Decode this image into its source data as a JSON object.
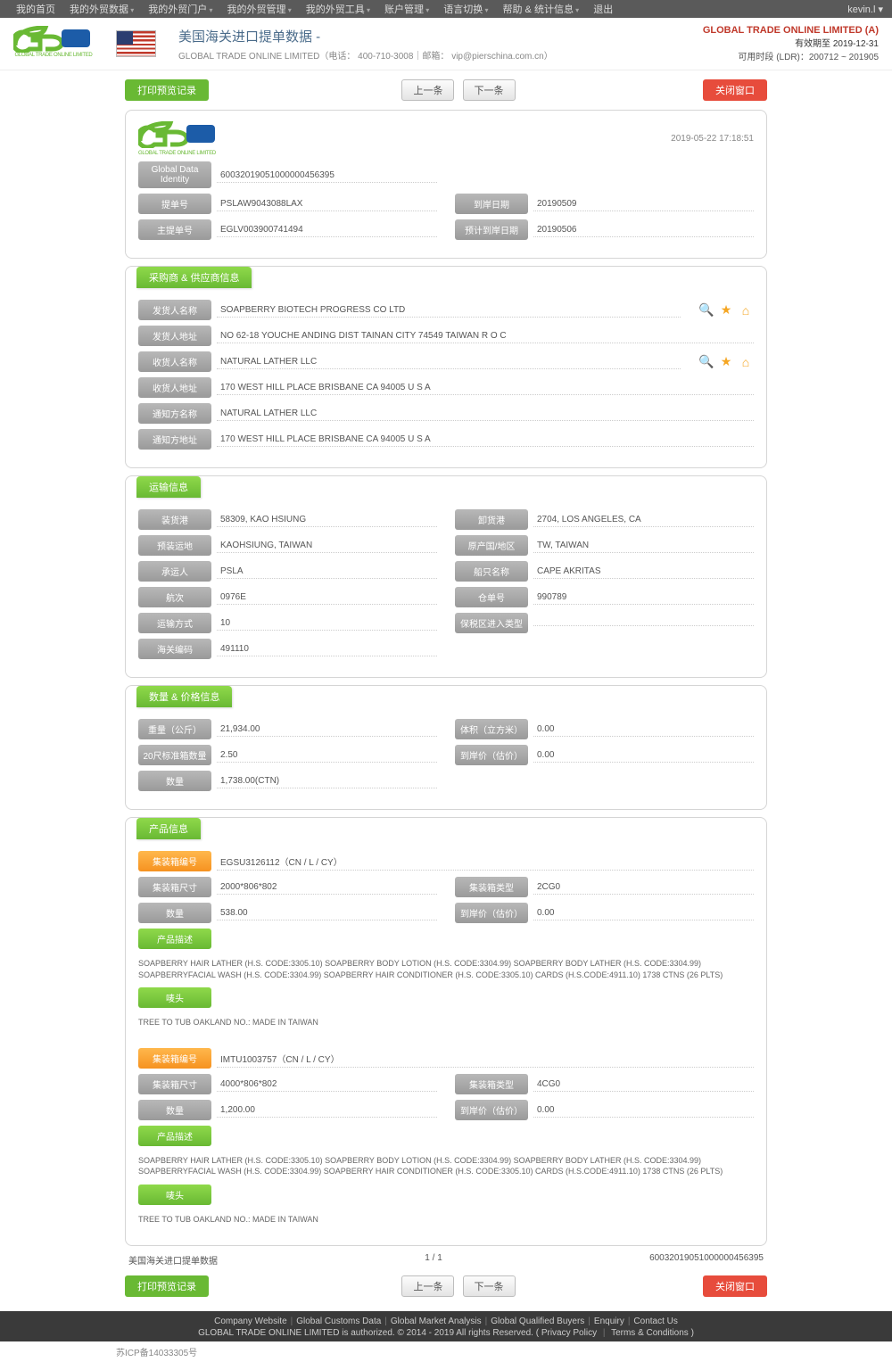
{
  "topnav": {
    "items": [
      "我的首页",
      "我的外贸数据",
      "我的外贸门户",
      "我的外贸管理",
      "我的外贸工具",
      "账户管理",
      "语言切换",
      "帮助 & 统计信息",
      "退出"
    ],
    "user": "kevin.l ▾"
  },
  "header": {
    "company_long": "GLOBAL TRADE ONLINE LIMITED",
    "title": "美国海关进口提单数据  -",
    "subtitle": "GLOBAL TRADE ONLINE LIMITED（电话：  400-710-3008｜邮箱：  vip@pierschina.com.cn）",
    "right_company": "GLOBAL TRADE ONLINE LIMITED (A)",
    "expire": "有效期至 2019-12-31",
    "period": "可用时段 (LDR)：200712 ~ 201905"
  },
  "actions": {
    "print": "打印预览记录",
    "prev": "上一条",
    "next": "下一条",
    "close": "关闭窗口"
  },
  "doc": {
    "timestamp": "2019-05-22 17:18:51",
    "gdi_lbl": "Global Data Identity",
    "gdi": "60032019051000000456395",
    "bill_no_lbl": "提单号",
    "bill_no": "PSLAW9043088LAX",
    "arrival_lbl": "到岸日期",
    "arrival": "20190509",
    "master_lbl": "主提单号",
    "master": "EGLV003900741494",
    "est_lbl": "预计到岸日期",
    "est": "20190506"
  },
  "parties": {
    "section": "采购商 & 供应商信息",
    "shipper_name_lbl": "发货人名称",
    "shipper_name": "SOAPBERRY BIOTECH PROGRESS CO LTD",
    "shipper_addr_lbl": "发货人地址",
    "shipper_addr": "NO 62-18 YOUCHE ANDING DIST TAINAN CITY 74549 TAIWAN R O C",
    "consignee_name_lbl": "收货人名称",
    "consignee_name": "NATURAL LATHER LLC",
    "consignee_addr_lbl": "收货人地址",
    "consignee_addr": "170 WEST HILL PLACE BRISBANE CA 94005 U S A",
    "notify_name_lbl": "通知方名称",
    "notify_name": "NATURAL LATHER LLC",
    "notify_addr_lbl": "通知方地址",
    "notify_addr": "170 WEST HILL PLACE BRISBANE CA 94005 U S A"
  },
  "transport": {
    "section": "运输信息",
    "load_port_lbl": "装货港",
    "load_port": "58309, KAO HSIUNG",
    "unload_port_lbl": "卸货港",
    "unload_port": "2704, LOS ANGELES, CA",
    "preload_lbl": "预装运地",
    "preload": "KAOHSIUNG, TAIWAN",
    "origin_lbl": "原产国/地区",
    "origin": "TW, TAIWAN",
    "carrier_lbl": "承运人",
    "carrier": "PSLA",
    "vessel_lbl": "船只名称",
    "vessel": "CAPE AKRITAS",
    "voyage_lbl": "航次",
    "voyage": "0976E",
    "cargono_lbl": "仓单号",
    "cargono": "990789",
    "mode_lbl": "运输方式",
    "mode": "10",
    "bonded_lbl": "保税区进入类型",
    "bonded": "",
    "customs_lbl": "海关编码",
    "customs": "491110"
  },
  "qty": {
    "section": "数量 & 价格信息",
    "weight_lbl": "重量（公斤）",
    "weight": "21,934.00",
    "volume_lbl": "体积（立方米）",
    "volume": "0.00",
    "teu_lbl": "20尺标准箱数量",
    "teu": "2.50",
    "cif_lbl": "到岸价（估价）",
    "cif": "0.00",
    "count_lbl": "数量",
    "count": "1,738.00(CTN)"
  },
  "products": {
    "section": "产品信息",
    "container_no_lbl": "集装箱编号",
    "container_size_lbl": "集装箱尺寸",
    "container_type_lbl": "集装箱类型",
    "qty_lbl": "数量",
    "cif_lbl": "到岸价（估价）",
    "desc_lbl": "产品描述",
    "mark_lbl": "唛头",
    "items": [
      {
        "no": "EGSU3126112（CN / L / CY）",
        "size": "2000*806*802",
        "type": "2CG0",
        "qty": "538.00",
        "cif": "0.00",
        "desc": "SOAPBERRY HAIR LATHER (H.S. CODE:3305.10) SOAPBERRY BODY LOTION (H.S. CODE:3304.99) SOAPBERRY BODY LATHER (H.S. CODE:3304.99) SOAPBERRYFACIAL WASH (H.S. CODE:3304.99) SOAPBERRY HAIR CONDITIONER (H.S. CODE:3305.10) CARDS (H.S.CODE:4911.10) 1738 CTNS (26 PLTS)",
        "mark": "TREE TO TUB OAKLAND NO.: MADE IN TAIWAN"
      },
      {
        "no": "IMTU1003757（CN / L / CY）",
        "size": "4000*806*802",
        "type": "4CG0",
        "qty": "1,200.00",
        "cif": "0.00",
        "desc": "SOAPBERRY HAIR LATHER (H.S. CODE:3305.10) SOAPBERRY BODY LOTION (H.S. CODE:3304.99) SOAPBERRY BODY LATHER (H.S. CODE:3304.99) SOAPBERRYFACIAL WASH (H.S. CODE:3304.99) SOAPBERRY HAIR CONDITIONER (H.S. CODE:3305.10) CARDS (H.S.CODE:4911.10) 1738 CTNS (26 PLTS)",
        "mark": "TREE TO TUB OAKLAND NO.: MADE IN TAIWAN"
      }
    ]
  },
  "pfoot": {
    "title": "美国海关进口提单数据",
    "page": "1 / 1",
    "id": "60032019051000000456395"
  },
  "footer": {
    "links": [
      "Company Website",
      "Global Customs Data",
      "Global Market Analysis",
      "Global Qualified Buyers",
      "Enquiry",
      "Contact Us"
    ],
    "auth": "GLOBAL TRADE ONLINE LIMITED is authorized. © 2014 - 2019 All rights Reserved.   (",
    "privacy": "Privacy Policy",
    "terms": "Terms & Conditions",
    "close": "  )",
    "icp": "苏ICP备14033305号"
  }
}
